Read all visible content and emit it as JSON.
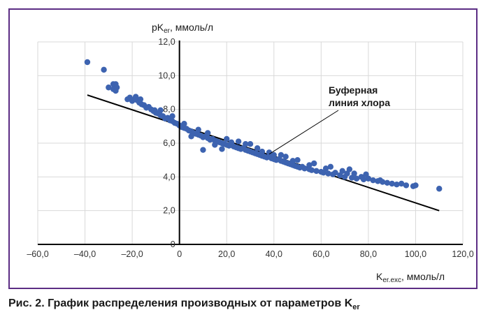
{
  "chart_data": {
    "type": "scatter",
    "title": "",
    "ylabel_main": "pK",
    "ylabel_sub": "er",
    "ylabel_unit": ", ммоль/л",
    "xlabel_main": "K",
    "xlabel_sub": "er.exc",
    "xlabel_unit": ", ммоль/л",
    "xlim": [
      -60,
      120
    ],
    "ylim": [
      0,
      12
    ],
    "x_ticks": [
      "–60,0",
      "–40,0",
      "–20,0",
      "0",
      "20,0",
      "40,0",
      "60,0",
      "80,0",
      "100,0",
      "120,0"
    ],
    "x_tick_values": [
      -60,
      -40,
      -20,
      0,
      20,
      40,
      60,
      80,
      100,
      120
    ],
    "y_ticks": [
      "0",
      "2,0",
      "4,0",
      "6,0",
      "8,0",
      "10,0",
      "12,0"
    ],
    "y_tick_values": [
      0,
      2,
      4,
      6,
      8,
      10,
      12
    ],
    "grid": true,
    "point_color": "#3d63b0",
    "line_color": "#000000",
    "trend_line": {
      "x": [
        -39,
        110
      ],
      "y": [
        8.85,
        2.0
      ]
    },
    "annotation": {
      "line1": "Буферная",
      "line2": "линия хлора",
      "arrow_to": [
        38,
        5.35
      ]
    },
    "points": [
      [
        -39,
        10.8
      ],
      [
        -32,
        10.35
      ],
      [
        -30,
        9.3
      ],
      [
        -28,
        9.5
      ],
      [
        -27.5,
        9.4
      ],
      [
        -28,
        9.2
      ],
      [
        -27,
        9.5
      ],
      [
        -26.5,
        9.3
      ],
      [
        -27,
        9.1
      ],
      [
        -22,
        8.6
      ],
      [
        -21,
        8.7
      ],
      [
        -20,
        8.5
      ],
      [
        -19,
        8.6
      ],
      [
        -18.5,
        8.75
      ],
      [
        -18,
        8.55
      ],
      [
        -17,
        8.4
      ],
      [
        -16.5,
        8.6
      ],
      [
        -16,
        8.3
      ],
      [
        -15,
        8.25
      ],
      [
        -14,
        8.1
      ],
      [
        -13,
        8.15
      ],
      [
        -12,
        8.0
      ],
      [
        -11,
        7.9
      ],
      [
        -10.5,
        7.95
      ],
      [
        -10,
        7.8
      ],
      [
        -9,
        7.75
      ],
      [
        -8,
        7.65
      ],
      [
        -7,
        7.6
      ],
      [
        -6,
        7.45
      ],
      [
        -5,
        7.5
      ],
      [
        -4,
        7.35
      ],
      [
        -3,
        7.3
      ],
      [
        -2,
        7.2
      ],
      [
        -1,
        7.15
      ],
      [
        0,
        7.05
      ],
      [
        1,
        6.95
      ],
      [
        2,
        6.9
      ],
      [
        3,
        6.85
      ],
      [
        4,
        6.75
      ],
      [
        5,
        6.7
      ],
      [
        6,
        6.6
      ],
      [
        7,
        6.55
      ],
      [
        8,
        6.5
      ],
      [
        9,
        6.45
      ],
      [
        10,
        6.35
      ],
      [
        11,
        6.4
      ],
      [
        12,
        6.3
      ],
      [
        13,
        6.2
      ],
      [
        14,
        6.25
      ],
      [
        15,
        6.15
      ],
      [
        16,
        6.1
      ],
      [
        17,
        6.05
      ],
      [
        18,
        6.0
      ],
      [
        19,
        5.95
      ],
      [
        20,
        5.9
      ],
      [
        21,
        5.85
      ],
      [
        22,
        5.9
      ],
      [
        23,
        5.8
      ],
      [
        24,
        5.75
      ],
      [
        25,
        5.7
      ],
      [
        26,
        5.65
      ],
      [
        27,
        5.7
      ],
      [
        28,
        5.6
      ],
      [
        29,
        5.55
      ],
      [
        30,
        5.5
      ],
      [
        31,
        5.45
      ],
      [
        32,
        5.4
      ],
      [
        33,
        5.35
      ],
      [
        34,
        5.3
      ],
      [
        35,
        5.25
      ],
      [
        36,
        5.2
      ],
      [
        37,
        5.15
      ],
      [
        38,
        5.2
      ],
      [
        39,
        5.1
      ],
      [
        40,
        5.05
      ],
      [
        41,
        5.0
      ],
      [
        42,
        5.05
      ],
      [
        43,
        4.95
      ],
      [
        44,
        4.9
      ],
      [
        45,
        4.85
      ],
      [
        46,
        4.8
      ],
      [
        47,
        4.75
      ],
      [
        48,
        4.7
      ],
      [
        49,
        4.65
      ],
      [
        50,
        4.6
      ],
      [
        51,
        4.55
      ],
      [
        52,
        4.6
      ],
      [
        53,
        4.5
      ],
      [
        55,
        4.45
      ],
      [
        56,
        4.4
      ],
      [
        58,
        4.35
      ],
      [
        60,
        4.3
      ],
      [
        61,
        4.25
      ],
      [
        63,
        4.2
      ],
      [
        65,
        4.15
      ],
      [
        66,
        4.25
      ],
      [
        68,
        4.1
      ],
      [
        70,
        4.0
      ],
      [
        71,
        4.2
      ],
      [
        73,
        3.95
      ],
      [
        75,
        3.9
      ],
      [
        77,
        4.0
      ],
      [
        78,
        3.85
      ],
      [
        80,
        3.9
      ],
      [
        82,
        3.8
      ],
      [
        84,
        3.75
      ],
      [
        85,
        3.8
      ],
      [
        86,
        3.7
      ],
      [
        88,
        3.65
      ],
      [
        90,
        3.6
      ],
      [
        92,
        3.55
      ],
      [
        94,
        3.6
      ],
      [
        96,
        3.5
      ],
      [
        99,
        3.45
      ],
      [
        100,
        3.5
      ],
      [
        110,
        3.3
      ],
      [
        10,
        5.6
      ],
      [
        18,
        5.65
      ],
      [
        5,
        6.4
      ],
      [
        25,
        6.1
      ],
      [
        30,
        5.95
      ],
      [
        15,
        5.9
      ],
      [
        22,
        6.05
      ],
      [
        35,
        5.5
      ],
      [
        40,
        5.3
      ],
      [
        45,
        5.2
      ],
      [
        48,
        4.95
      ],
      [
        55,
        4.7
      ],
      [
        62,
        4.5
      ],
      [
        69,
        4.35
      ],
      [
        74,
        4.2
      ],
      [
        79,
        4.15
      ],
      [
        -8,
        7.95
      ],
      [
        -3,
        7.6
      ],
      [
        2,
        7.15
      ],
      [
        8,
        6.8
      ],
      [
        12,
        6.6
      ],
      [
        20,
        6.25
      ],
      [
        28,
        5.95
      ],
      [
        33,
        5.7
      ],
      [
        38,
        5.45
      ],
      [
        43,
        5.3
      ],
      [
        50,
        5.0
      ],
      [
        57,
        4.8
      ],
      [
        64,
        4.6
      ],
      [
        72,
        4.45
      ]
    ]
  },
  "caption": {
    "main": "Рис. 2. График распределения производных от параметров K",
    "sub": "er"
  }
}
